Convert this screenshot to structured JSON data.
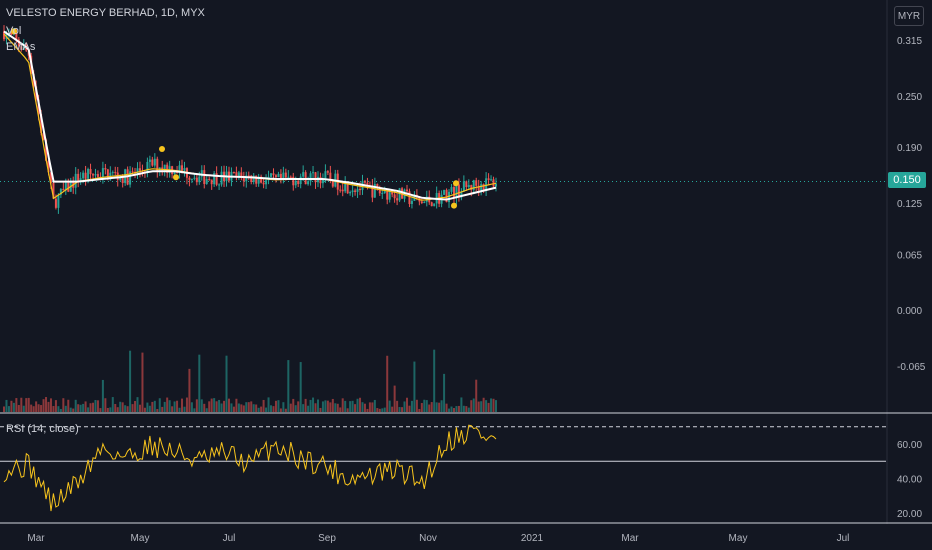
{
  "header": {
    "symbol_line": "VELESTO ENERGY BERHAD, 1D, MYX",
    "vol_label": "Vol",
    "emas_label": "EMAs",
    "rsi_label": "RSI (14, close)",
    "currency": "MYR",
    "last_price": "0.150"
  },
  "colors": {
    "background": "#131722",
    "up": "#26a69a",
    "down": "#ef5350",
    "ema_fast": "#f7c41d",
    "ema_slow": "#ffffff",
    "rsi": "#f7c41d"
  },
  "chart_data": [
    {
      "type": "line",
      "title": "VELESTO ENERGY BERHAD, 1D, MYX",
      "price_axis_ticks": [
        "0.315",
        "0.250",
        "0.190",
        "0.125",
        "0.065",
        "0.000",
        "-0.065"
      ],
      "time_axis_ticks": [
        "Mar",
        "May",
        "Jul",
        "Sep",
        "Nov",
        "2021",
        "Mar",
        "May",
        "Jul"
      ],
      "x_dates": [
        "2020-02-20",
        "2020-03-01",
        "2020-03-15",
        "2020-04-01",
        "2020-04-15",
        "2020-05-01",
        "2020-05-15",
        "2020-06-01",
        "2020-06-15",
        "2020-07-01",
        "2020-07-15",
        "2020-08-01",
        "2020-08-15",
        "2020-09-01",
        "2020-09-15",
        "2020-10-01",
        "2020-10-15",
        "2020-11-01",
        "2020-11-15",
        "2020-12-01",
        "2020-12-10"
      ],
      "series": [
        {
          "name": "close",
          "values": [
            0.325,
            0.3,
            0.125,
            0.155,
            0.16,
            0.155,
            0.17,
            0.165,
            0.155,
            0.155,
            0.155,
            0.15,
            0.155,
            0.155,
            0.145,
            0.14,
            0.135,
            0.125,
            0.135,
            0.145,
            0.15
          ]
        },
        {
          "name": "ema_fast",
          "values": [
            0.322,
            0.29,
            0.13,
            0.15,
            0.155,
            0.158,
            0.165,
            0.163,
            0.158,
            0.156,
            0.155,
            0.152,
            0.153,
            0.153,
            0.147,
            0.142,
            0.137,
            0.128,
            0.132,
            0.142,
            0.148
          ]
        },
        {
          "name": "ema_slow",
          "values": [
            0.325,
            0.305,
            0.15,
            0.15,
            0.153,
            0.156,
            0.162,
            0.162,
            0.158,
            0.156,
            0.155,
            0.153,
            0.153,
            0.153,
            0.149,
            0.144,
            0.139,
            0.131,
            0.129,
            0.136,
            0.143
          ]
        }
      ],
      "last_value": 0.15
    },
    {
      "type": "line",
      "title": "RSI (14, close)",
      "y_ticks": [
        "60.00",
        "40.00",
        "20.00"
      ],
      "ylim": [
        15,
        75
      ],
      "bands": [
        70,
        50
      ],
      "series": [
        {
          "name": "RSI (14, close)",
          "values": [
            45,
            48,
            25,
            38,
            58,
            52,
            60,
            55,
            50,
            55,
            48,
            60,
            52,
            48,
            40,
            42,
            45,
            38,
            62,
            68,
            62
          ]
        }
      ]
    }
  ]
}
